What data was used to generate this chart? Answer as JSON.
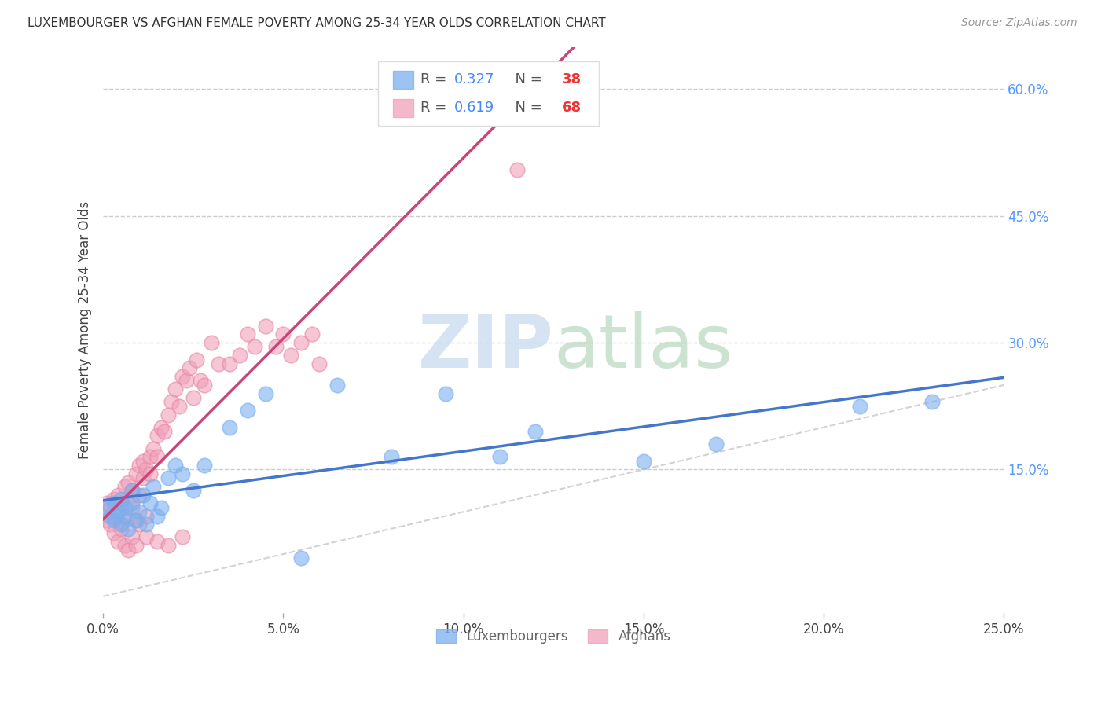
{
  "title": "LUXEMBOURGER VS AFGHAN FEMALE POVERTY AMONG 25-34 YEAR OLDS CORRELATION CHART",
  "source": "Source: ZipAtlas.com",
  "ylabel": "Female Poverty Among 25-34 Year Olds",
  "xlim": [
    0.0,
    0.25
  ],
  "ylim": [
    -0.02,
    0.65
  ],
  "xticks": [
    0.0,
    0.05,
    0.1,
    0.15,
    0.2,
    0.25
  ],
  "yticks_right": [
    0.15,
    0.3,
    0.45,
    0.6
  ],
  "luxembourger_R": 0.327,
  "luxembourger_N": 38,
  "afghan_R": 0.619,
  "afghan_N": 68,
  "lux_color": "#7aaff0",
  "afg_color": "#f0a0b8",
  "lux_edge_color": "#7aaff0",
  "afg_edge_color": "#e888a8",
  "lux_line_color": "#4477cc",
  "afg_line_color": "#cc4477",
  "ref_line_color": "#c8c8c8",
  "watermark_zip_color": "#c5d8ee",
  "watermark_atlas_color": "#b8d8c0",
  "lux_x": [
    0.001,
    0.002,
    0.003,
    0.003,
    0.004,
    0.005,
    0.005,
    0.006,
    0.006,
    0.007,
    0.008,
    0.008,
    0.009,
    0.01,
    0.011,
    0.012,
    0.013,
    0.014,
    0.015,
    0.016,
    0.018,
    0.02,
    0.022,
    0.025,
    0.028,
    0.035,
    0.04,
    0.045,
    0.055,
    0.065,
    0.08,
    0.095,
    0.11,
    0.12,
    0.15,
    0.17,
    0.21,
    0.23
  ],
  "lux_y": [
    0.105,
    0.095,
    0.09,
    0.11,
    0.1,
    0.115,
    0.085,
    0.095,
    0.105,
    0.08,
    0.11,
    0.125,
    0.09,
    0.1,
    0.12,
    0.085,
    0.11,
    0.13,
    0.095,
    0.105,
    0.14,
    0.155,
    0.145,
    0.125,
    0.155,
    0.2,
    0.22,
    0.24,
    0.045,
    0.25,
    0.165,
    0.24,
    0.165,
    0.195,
    0.16,
    0.18,
    0.225,
    0.23
  ],
  "afg_x": [
    0.001,
    0.001,
    0.002,
    0.002,
    0.003,
    0.003,
    0.004,
    0.004,
    0.005,
    0.005,
    0.006,
    0.006,
    0.007,
    0.007,
    0.008,
    0.008,
    0.009,
    0.009,
    0.01,
    0.01,
    0.011,
    0.011,
    0.012,
    0.012,
    0.013,
    0.013,
    0.014,
    0.015,
    0.015,
    0.016,
    0.017,
    0.018,
    0.019,
    0.02,
    0.021,
    0.022,
    0.023,
    0.024,
    0.025,
    0.026,
    0.027,
    0.028,
    0.03,
    0.032,
    0.035,
    0.038,
    0.04,
    0.042,
    0.045,
    0.048,
    0.05,
    0.052,
    0.055,
    0.058,
    0.06,
    0.003,
    0.004,
    0.005,
    0.006,
    0.007,
    0.008,
    0.009,
    0.01,
    0.012,
    0.015,
    0.018,
    0.022,
    0.115
  ],
  "afg_y": [
    0.09,
    0.11,
    0.085,
    0.105,
    0.095,
    0.115,
    0.1,
    0.12,
    0.085,
    0.11,
    0.13,
    0.095,
    0.115,
    0.135,
    0.105,
    0.125,
    0.09,
    0.145,
    0.12,
    0.155,
    0.14,
    0.16,
    0.15,
    0.095,
    0.165,
    0.145,
    0.175,
    0.19,
    0.165,
    0.2,
    0.195,
    0.215,
    0.23,
    0.245,
    0.225,
    0.26,
    0.255,
    0.27,
    0.235,
    0.28,
    0.255,
    0.25,
    0.3,
    0.275,
    0.275,
    0.285,
    0.31,
    0.295,
    0.32,
    0.295,
    0.31,
    0.285,
    0.3,
    0.31,
    0.275,
    0.075,
    0.065,
    0.08,
    0.06,
    0.055,
    0.07,
    0.06,
    0.085,
    0.07,
    0.065,
    0.06,
    0.07,
    0.505
  ]
}
